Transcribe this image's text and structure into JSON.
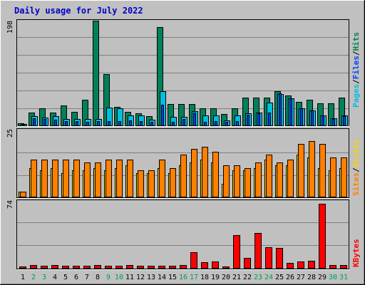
{
  "title": "Daily usage for July 2022",
  "colors": {
    "background": "#c0c0c0",
    "title": "#0000cc",
    "hits": "#00805c",
    "files": "#0040ff",
    "pages": "#00c0e0",
    "visits": "#ffd000",
    "sites": "#ff8000",
    "kbytes": "#ff0000",
    "weekend_day": "#00a050",
    "weekday": "#000000"
  },
  "chart_data": [
    {
      "type": "bar",
      "panel": "hits-files-pages",
      "ymax_label": "198",
      "ylim": [
        0,
        198
      ],
      "legend": {
        "pages": "Pages",
        "files": "Files",
        "hits": "Hits",
        "separator": "/"
      },
      "categories": [
        "1",
        "2",
        "3",
        "4",
        "5",
        "6",
        "7",
        "8",
        "9",
        "10",
        "11",
        "12",
        "13",
        "14",
        "15",
        "16",
        "17",
        "18",
        "19",
        "20",
        "21",
        "22",
        "23",
        "24",
        "25",
        "26",
        "27",
        "28",
        "29",
        "30",
        "31"
      ],
      "series": [
        {
          "name": "Hits",
          "values": [
            6,
            25,
            34,
            25,
            39,
            27,
            50,
            198,
            98,
            36,
            27,
            24,
            19,
            186,
            42,
            42,
            42,
            33,
            33,
            23,
            33,
            54,
            54,
            54,
            65,
            58,
            46,
            50,
            43,
            43,
            54
          ]
        },
        {
          "name": "Files",
          "values": [
            3,
            15,
            13,
            12,
            10,
            10,
            8,
            9,
            9,
            10,
            11,
            9,
            8,
            40,
            8,
            13,
            25,
            8,
            10,
            8,
            10,
            22,
            24,
            25,
            61,
            52,
            33,
            29,
            20,
            13,
            19
          ]
        },
        {
          "name": "Pages",
          "values": [
            4,
            19,
            16,
            19,
            14,
            14,
            13,
            14,
            35,
            33,
            20,
            20,
            12,
            65,
            18,
            18,
            28,
            20,
            20,
            11,
            20,
            24,
            25,
            44,
            60,
            52,
            33,
            29,
            20,
            15,
            20
          ]
        }
      ]
    },
    {
      "type": "bar",
      "panel": "visits-sites",
      "ymax_label": "25",
      "ylim": [
        0,
        25
      ],
      "legend": {
        "sites": "Sites",
        "visits": "Visits",
        "separator": "/"
      },
      "categories": [
        "1",
        "2",
        "3",
        "4",
        "5",
        "6",
        "7",
        "8",
        "9",
        "10",
        "11",
        "12",
        "13",
        "14",
        "15",
        "16",
        "17",
        "18",
        "19",
        "20",
        "21",
        "22",
        "23",
        "24",
        "25",
        "26",
        "27",
        "28",
        "29",
        "30",
        "31"
      ],
      "series": [
        {
          "name": "Visits",
          "values": [
            2,
            11,
            10,
            11,
            9,
            10,
            10,
            11,
            10,
            11,
            12,
            9,
            9,
            11,
            9,
            12,
            13,
            14,
            13,
            5,
            10,
            10,
            11,
            14,
            12,
            12,
            16,
            15,
            11,
            10,
            11
          ]
        },
        {
          "name": "Sites",
          "values": [
            2,
            14,
            14,
            14,
            14,
            14,
            13,
            13,
            14,
            14,
            14,
            10,
            10,
            14,
            11,
            16,
            18,
            19,
            17,
            12,
            12,
            11,
            13,
            16,
            13,
            14,
            20,
            21,
            20,
            15,
            15
          ]
        }
      ]
    },
    {
      "type": "bar",
      "panel": "kbytes",
      "ymax_label": "74",
      "ylim": [
        0,
        74
      ],
      "legend": {
        "kbytes": "KBytes"
      },
      "categories": [
        "1",
        "2",
        "3",
        "4",
        "5",
        "6",
        "7",
        "8",
        "9",
        "10",
        "11",
        "12",
        "13",
        "14",
        "15",
        "16",
        "17",
        "18",
        "19",
        "20",
        "21",
        "22",
        "23",
        "24",
        "25",
        "26",
        "27",
        "28",
        "29",
        "30",
        "31"
      ],
      "series": [
        {
          "name": "KBytes",
          "values": [
            2,
            4,
            3,
            4,
            3,
            3,
            3,
            4,
            3,
            3,
            4,
            3,
            3,
            3,
            3,
            4,
            18,
            7,
            8,
            2,
            37,
            12,
            39,
            24,
            23,
            6,
            8,
            9,
            72,
            4,
            4
          ]
        }
      ]
    }
  ],
  "days": [
    "1",
    "2",
    "3",
    "4",
    "5",
    "6",
    "7",
    "8",
    "9",
    "10",
    "11",
    "12",
    "13",
    "14",
    "15",
    "16",
    "17",
    "18",
    "19",
    "20",
    "21",
    "22",
    "23",
    "24",
    "25",
    "26",
    "27",
    "28",
    "29",
    "30",
    "31"
  ],
  "weekend_days": [
    "2",
    "3",
    "9",
    "10",
    "16",
    "17",
    "23",
    "24",
    "30",
    "31"
  ]
}
